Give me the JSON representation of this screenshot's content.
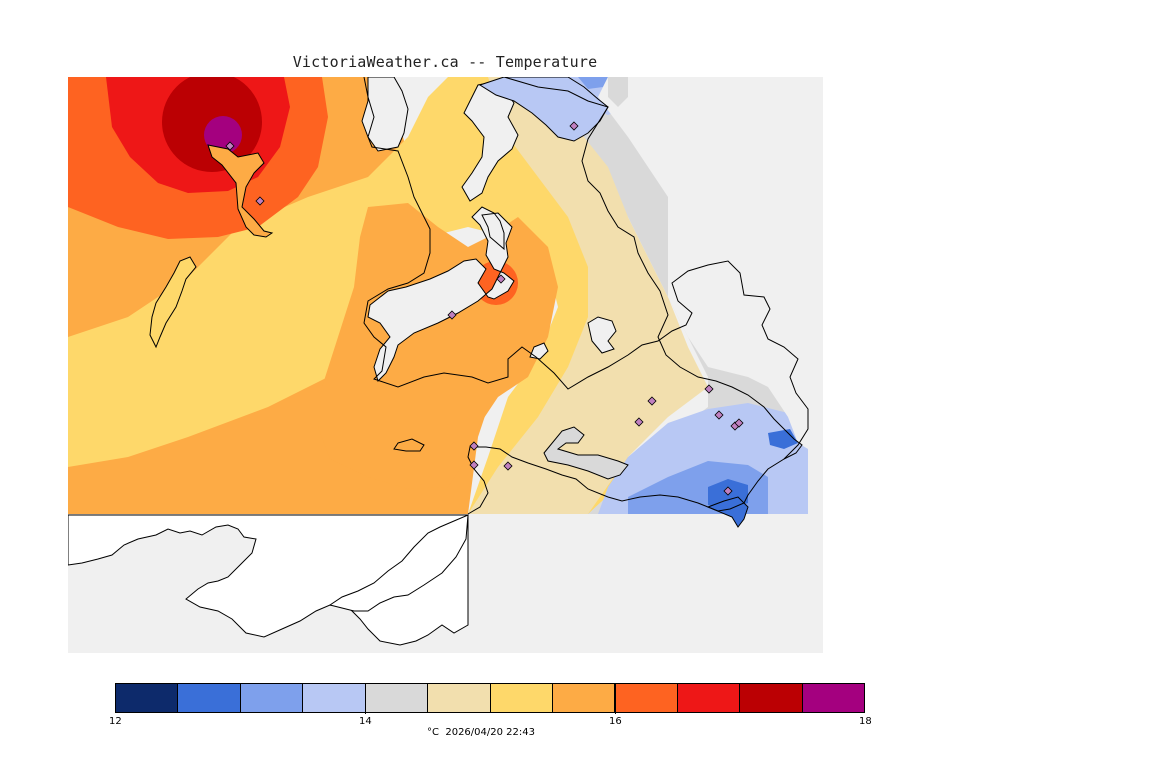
{
  "header": {
    "title": "VictoriaWeather.ca -- Temperature"
  },
  "map": {
    "background_color": "#f0f0f0",
    "land_unfilled_color": "#ffffff",
    "coastline_color": "#000000",
    "station_marker_color": "#c080c0",
    "station_count": 15
  },
  "legend": {
    "colors": [
      "#0d2a6b",
      "#3a6fd8",
      "#7ea0ec",
      "#b8c8f4",
      "#d9d9d9",
      "#f2dfae",
      "#fed86a",
      "#fdab45",
      "#fe6321",
      "#ee1717",
      "#bb0003",
      "#a4007f"
    ],
    "range": [
      12,
      18
    ],
    "tick_labels": [
      {
        "value": 12,
        "label": "12"
      },
      {
        "value": 14,
        "label": "14"
      },
      {
        "value": 16,
        "label": "16"
      },
      {
        "value": 18,
        "label": "18"
      }
    ],
    "unit": "°C",
    "timestamp": "2026/04/20 22:43"
  }
}
